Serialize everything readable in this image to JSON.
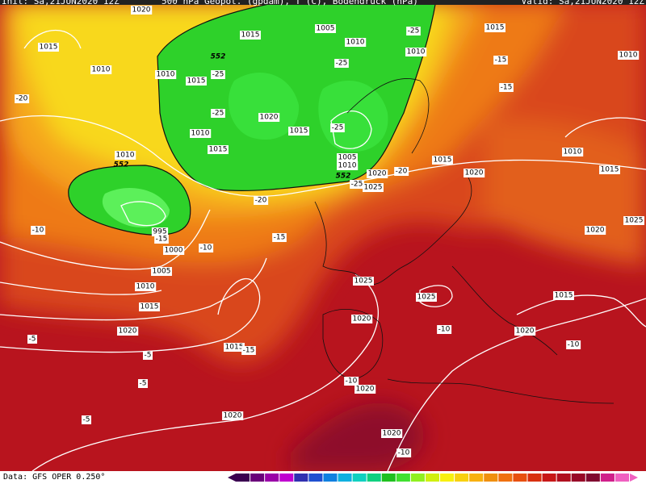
{
  "header": {
    "init": "Init: Sa,21JUN2020 12Z",
    "title": "500 hPa Geopot. (gpdam), T (C), Bodendruck (hPa)",
    "valid": "Valid: Sa,21JUN2020 12Z"
  },
  "footer": {
    "source": "Data: GFS OPER 0.250°"
  },
  "pressure_labels": [
    "1020",
    "1005",
    "1010",
    "1015",
    "1010",
    "1015",
    "1015",
    "1010",
    "1015",
    "1010",
    "1010",
    "1020",
    "1015",
    "1010",
    "1015",
    "1010",
    "1005",
    "1010",
    "1020",
    "1025",
    "1015",
    "1020",
    "1010",
    "1015",
    "995",
    "1000",
    "1005",
    "1010",
    "1015",
    "1020",
    "1025",
    "1025",
    "1015",
    "1020",
    "1020",
    "1015",
    "1020",
    "1020",
    "1020",
    "1020",
    "1025"
  ],
  "temperature_labels": [
    "-25",
    "-20",
    "-25",
    "-15",
    "-15",
    "-25",
    "-25",
    "-25",
    "-20",
    "-20",
    "-25",
    "-15",
    "-10",
    "-15",
    "-10",
    "-10",
    "-10",
    "-15",
    "-5",
    "-5",
    "-5",
    "-10",
    "-5",
    "-10"
  ],
  "geopotential_labels": [
    "552",
    "552",
    "552"
  ]
}
